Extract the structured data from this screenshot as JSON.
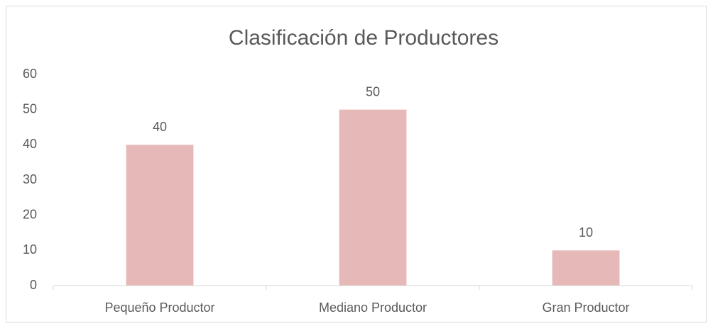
{
  "chart_data": {
    "type": "bar",
    "title": "Clasificación de Productores",
    "categories": [
      "Pequeño Productor",
      "Mediano Productor",
      "Gran Productor"
    ],
    "values": [
      40,
      50,
      10
    ],
    "color": "#e6b8b7",
    "ylim": [
      0,
      60
    ],
    "yticks": [
      0,
      10,
      20,
      30,
      40,
      50,
      60
    ],
    "grid": false
  }
}
